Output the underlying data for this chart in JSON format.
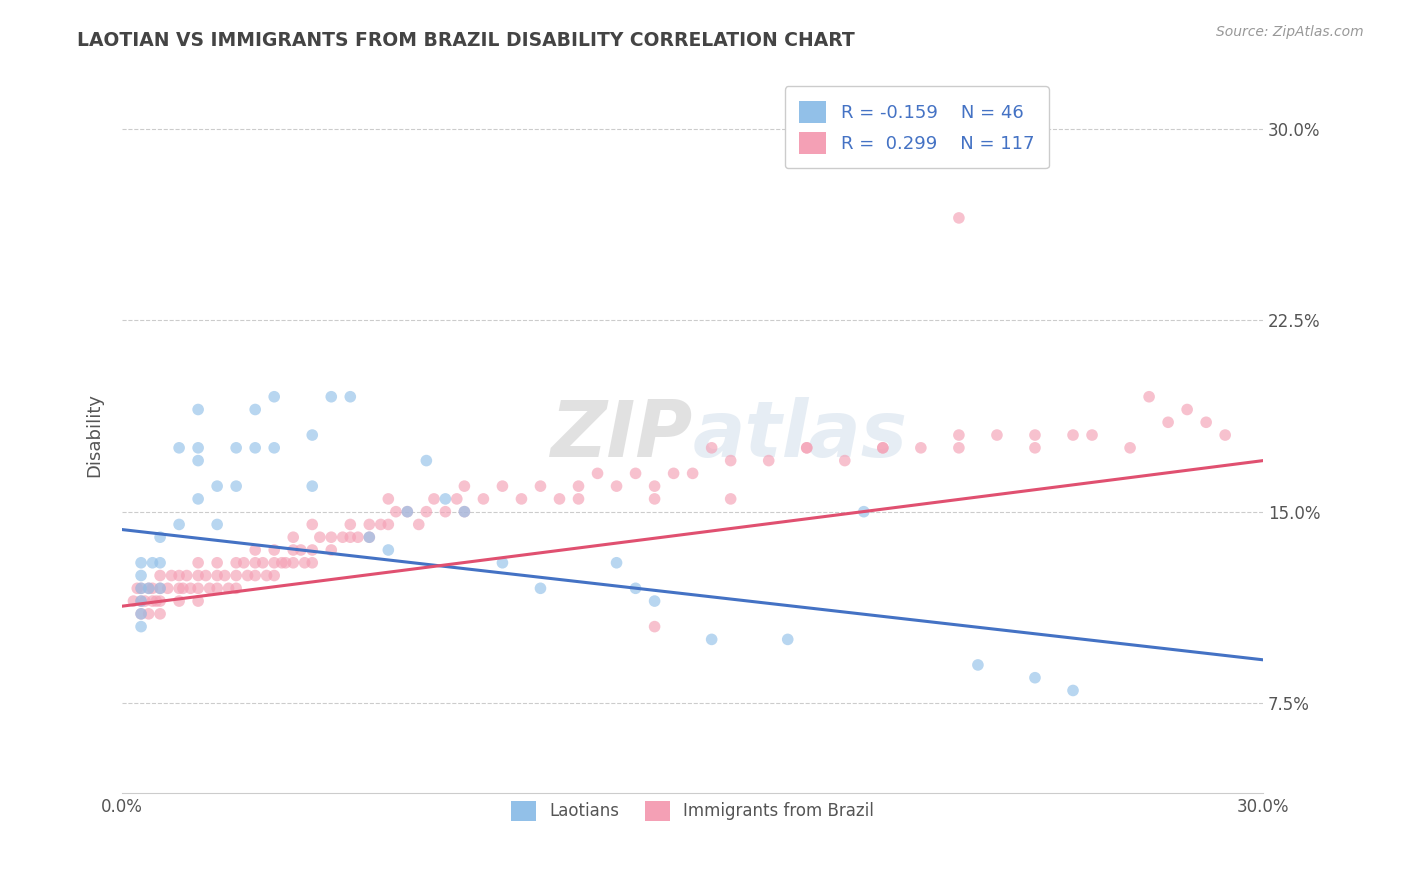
{
  "title": "LAOTIAN VS IMMIGRANTS FROM BRAZIL DISABILITY CORRELATION CHART",
  "source": "Source: ZipAtlas.com",
  "xmin": 0.0,
  "xmax": 0.3,
  "ymin": 0.04,
  "ymax": 0.32,
  "ylabel": "Disability",
  "watermark": "ZIPatlas",
  "legend_labels": [
    "Laotians",
    "Immigrants from Brazil"
  ],
  "r_laotian": -0.159,
  "n_laotian": 46,
  "r_brazil": 0.299,
  "n_brazil": 117,
  "color_laotian": "#92C0E8",
  "color_brazil": "#F4A0B5",
  "color_line_laotian": "#4472C4",
  "color_line_brazil": "#E05070",
  "scatter_alpha": 0.65,
  "scatter_size": 70,
  "blue_line_y0": 0.143,
  "blue_line_y1": 0.092,
  "pink_line_y0": 0.113,
  "pink_line_y1": 0.17,
  "grid_color": "#CCCCCC",
  "background_color": "#FFFFFF",
  "text_color": "#555555",
  "laotian_x": [
    0.005,
    0.005,
    0.005,
    0.005,
    0.005,
    0.005,
    0.007,
    0.008,
    0.01,
    0.01,
    0.01,
    0.015,
    0.015,
    0.02,
    0.02,
    0.02,
    0.02,
    0.025,
    0.025,
    0.03,
    0.03,
    0.035,
    0.035,
    0.04,
    0.04,
    0.05,
    0.05,
    0.055,
    0.06,
    0.065,
    0.07,
    0.075,
    0.08,
    0.085,
    0.09,
    0.1,
    0.11,
    0.13,
    0.135,
    0.14,
    0.155,
    0.175,
    0.195,
    0.225,
    0.24,
    0.25
  ],
  "laotian_y": [
    0.12,
    0.125,
    0.13,
    0.115,
    0.11,
    0.105,
    0.12,
    0.13,
    0.14,
    0.13,
    0.12,
    0.145,
    0.175,
    0.155,
    0.17,
    0.19,
    0.175,
    0.16,
    0.145,
    0.175,
    0.16,
    0.175,
    0.19,
    0.195,
    0.175,
    0.18,
    0.16,
    0.195,
    0.195,
    0.14,
    0.135,
    0.15,
    0.17,
    0.155,
    0.15,
    0.13,
    0.12,
    0.13,
    0.12,
    0.115,
    0.1,
    0.1,
    0.15,
    0.09,
    0.085,
    0.08
  ],
  "brazil_x": [
    0.003,
    0.004,
    0.005,
    0.005,
    0.005,
    0.006,
    0.007,
    0.007,
    0.008,
    0.008,
    0.009,
    0.01,
    0.01,
    0.01,
    0.01,
    0.012,
    0.013,
    0.015,
    0.015,
    0.015,
    0.016,
    0.017,
    0.018,
    0.02,
    0.02,
    0.02,
    0.02,
    0.022,
    0.023,
    0.025,
    0.025,
    0.025,
    0.027,
    0.028,
    0.03,
    0.03,
    0.03,
    0.032,
    0.033,
    0.035,
    0.035,
    0.035,
    0.037,
    0.038,
    0.04,
    0.04,
    0.04,
    0.042,
    0.043,
    0.045,
    0.045,
    0.045,
    0.047,
    0.048,
    0.05,
    0.05,
    0.05,
    0.052,
    0.055,
    0.055,
    0.058,
    0.06,
    0.06,
    0.062,
    0.065,
    0.065,
    0.068,
    0.07,
    0.07,
    0.072,
    0.075,
    0.078,
    0.08,
    0.082,
    0.085,
    0.088,
    0.09,
    0.09,
    0.095,
    0.1,
    0.105,
    0.11,
    0.115,
    0.12,
    0.125,
    0.13,
    0.135,
    0.14,
    0.145,
    0.15,
    0.16,
    0.17,
    0.18,
    0.19,
    0.2,
    0.21,
    0.22,
    0.23,
    0.24,
    0.25,
    0.12,
    0.14,
    0.155,
    0.16,
    0.18,
    0.2,
    0.22,
    0.24,
    0.255,
    0.265,
    0.27,
    0.275,
    0.28,
    0.285,
    0.29,
    0.14,
    0.22
  ],
  "brazil_y": [
    0.115,
    0.12,
    0.12,
    0.115,
    0.11,
    0.115,
    0.12,
    0.11,
    0.12,
    0.115,
    0.115,
    0.12,
    0.115,
    0.11,
    0.125,
    0.12,
    0.125,
    0.125,
    0.12,
    0.115,
    0.12,
    0.125,
    0.12,
    0.12,
    0.125,
    0.115,
    0.13,
    0.125,
    0.12,
    0.125,
    0.13,
    0.12,
    0.125,
    0.12,
    0.13,
    0.125,
    0.12,
    0.13,
    0.125,
    0.13,
    0.125,
    0.135,
    0.13,
    0.125,
    0.13,
    0.125,
    0.135,
    0.13,
    0.13,
    0.135,
    0.13,
    0.14,
    0.135,
    0.13,
    0.135,
    0.13,
    0.145,
    0.14,
    0.14,
    0.135,
    0.14,
    0.145,
    0.14,
    0.14,
    0.145,
    0.14,
    0.145,
    0.145,
    0.155,
    0.15,
    0.15,
    0.145,
    0.15,
    0.155,
    0.15,
    0.155,
    0.15,
    0.16,
    0.155,
    0.16,
    0.155,
    0.16,
    0.155,
    0.16,
    0.165,
    0.16,
    0.165,
    0.16,
    0.165,
    0.165,
    0.17,
    0.17,
    0.175,
    0.17,
    0.175,
    0.175,
    0.175,
    0.18,
    0.18,
    0.18,
    0.155,
    0.155,
    0.175,
    0.155,
    0.175,
    0.175,
    0.18,
    0.175,
    0.18,
    0.175,
    0.195,
    0.185,
    0.19,
    0.185,
    0.18,
    0.105,
    0.265
  ]
}
